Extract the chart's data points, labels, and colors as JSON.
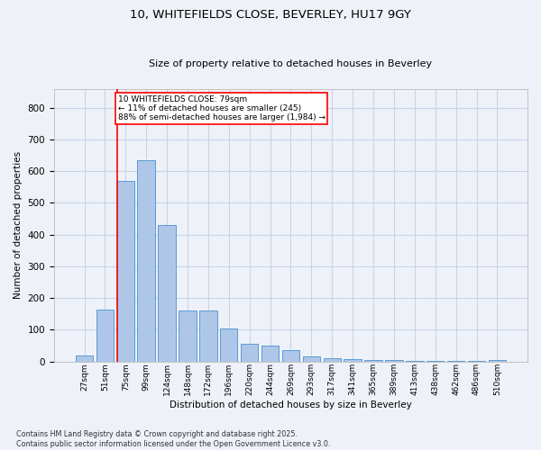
{
  "title": "10, WHITEFIELDS CLOSE, BEVERLEY, HU17 9GY",
  "subtitle": "Size of property relative to detached houses in Beverley",
  "xlabel": "Distribution of detached houses by size in Beverley",
  "ylabel": "Number of detached properties",
  "categories": [
    "27sqm",
    "51sqm",
    "75sqm",
    "99sqm",
    "124sqm",
    "148sqm",
    "172sqm",
    "196sqm",
    "220sqm",
    "244sqm",
    "269sqm",
    "293sqm",
    "317sqm",
    "341sqm",
    "365sqm",
    "389sqm",
    "413sqm",
    "438sqm",
    "462sqm",
    "486sqm",
    "510sqm"
  ],
  "values": [
    20,
    165,
    570,
    635,
    430,
    160,
    160,
    105,
    55,
    50,
    35,
    15,
    10,
    8,
    6,
    4,
    3,
    2,
    2,
    1,
    5
  ],
  "bar_color": "#aec6e8",
  "bar_edge_color": "#5b9bd5",
  "grid_color": "#c8d4e8",
  "background_color": "#eef2f8",
  "vline_color": "red",
  "annotation_text": "10 WHITEFIELDS CLOSE: 79sqm\n← 11% of detached houses are smaller (245)\n88% of semi-detached houses are larger (1,984) →",
  "annotation_box_color": "white",
  "annotation_box_edge_color": "red",
  "footnote": "Contains HM Land Registry data © Crown copyright and database right 2025.\nContains public sector information licensed under the Open Government Licence v3.0.",
  "ylim": [
    0,
    860
  ],
  "yticks": [
    0,
    100,
    200,
    300,
    400,
    500,
    600,
    700,
    800
  ]
}
